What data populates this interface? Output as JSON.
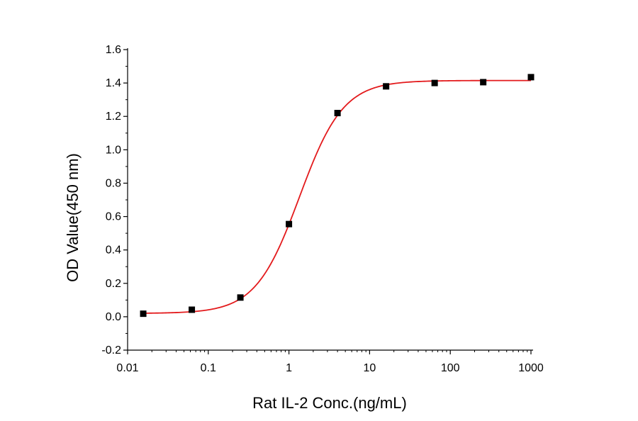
{
  "chart_data": {
    "type": "scatter",
    "title": "",
    "xlabel": "Rat IL-2 Conc.(ng/mL)",
    "ylabel": "OD Value(450 nm)",
    "xscale": "log",
    "xlim": [
      0.01,
      1000
    ],
    "ylim": [
      -0.2,
      1.6
    ],
    "x_ticks": [
      0.01,
      0.1,
      1,
      10,
      100,
      1000
    ],
    "x_tick_labels": [
      "0.01",
      "0.1",
      "1",
      "10",
      "100",
      "1000"
    ],
    "y_ticks": [
      -0.2,
      0.0,
      0.2,
      0.4,
      0.6,
      0.8,
      1.0,
      1.2,
      1.4,
      1.6
    ],
    "y_tick_labels": [
      "-0.2",
      "0.0",
      "0.2",
      "0.4",
      "0.6",
      "0.8",
      "1.0",
      "1.2",
      "1.4",
      "1.6"
    ],
    "grid": false,
    "legend": "none",
    "series": [
      {
        "kind": "points",
        "marker": "square",
        "color": "#000000",
        "x": [
          0.015625,
          0.0625,
          0.25,
          1,
          4,
          16,
          64,
          256,
          1000
        ],
        "y": [
          0.018,
          0.042,
          0.115,
          0.555,
          1.22,
          1.38,
          1.4,
          1.405,
          1.435
        ]
      },
      {
        "kind": "fit-curve",
        "model": "4-parameter logistic",
        "color": "#e31a1c",
        "bottom": 0.02,
        "top": 1.415,
        "ec50": 1.35,
        "hill": 1.6,
        "x_range": [
          0.015625,
          1000
        ]
      }
    ]
  }
}
